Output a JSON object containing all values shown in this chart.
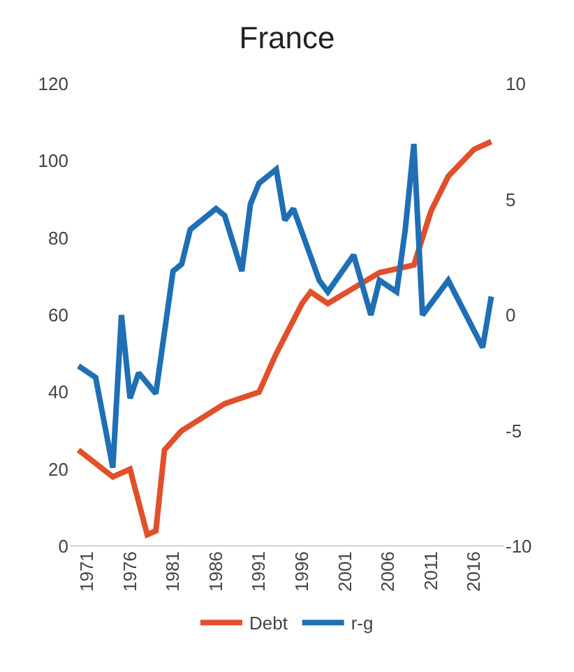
{
  "chart_data": {
    "type": "line",
    "title": "France",
    "xlim": [
      1969,
      2019.5
    ],
    "xticks": [
      1971,
      1976,
      1981,
      1986,
      1991,
      1996,
      2001,
      2006,
      2011,
      2016
    ],
    "ylim": [
      0,
      120
    ],
    "yticks": [
      0,
      20,
      40,
      60,
      80,
      100,
      120
    ],
    "y2lim": [
      -10,
      10
    ],
    "y2ticks": [
      -10,
      -5,
      0,
      5,
      10
    ],
    "legend": "bottom",
    "series": [
      {
        "name": "Debt",
        "color": "#e0502a",
        "x": [
          1970,
          1974,
          1976,
          1978,
          1979,
          1980,
          1982,
          1987,
          1991,
          1993,
          1996,
          1997,
          1999,
          2002,
          2005,
          2009,
          2011,
          2013,
          2016,
          2018
        ],
        "values": [
          25,
          18,
          20,
          3,
          4,
          25,
          30,
          37,
          40,
          50,
          63,
          66,
          63,
          67,
          71,
          73,
          87,
          96,
          103,
          105
        ]
      },
      {
        "name": "r-g",
        "color": "#1f6fb5",
        "axis": "y2",
        "x": [
          1970,
          1972,
          1974,
          1975,
          1976,
          1977,
          1979,
          1981,
          1982,
          1983,
          1986,
          1987,
          1989,
          1990,
          1991,
          1993,
          1994,
          1995,
          1998,
          1999,
          2002,
          2004,
          2005,
          2007,
          2008,
          2009,
          2010,
          2013,
          2017,
          2018
        ],
        "values": [
          -2.2,
          -2.7,
          -6.6,
          0,
          -3.6,
          -2.5,
          -3.4,
          1.9,
          2.2,
          3.7,
          4.6,
          4.3,
          1.9,
          4.8,
          5.7,
          6.3,
          4.1,
          4.6,
          1.5,
          1.0,
          2.6,
          0,
          1.5,
          1.0,
          3.7,
          7.4,
          0,
          1.5,
          -1.4,
          0.8
        ]
      }
    ]
  }
}
